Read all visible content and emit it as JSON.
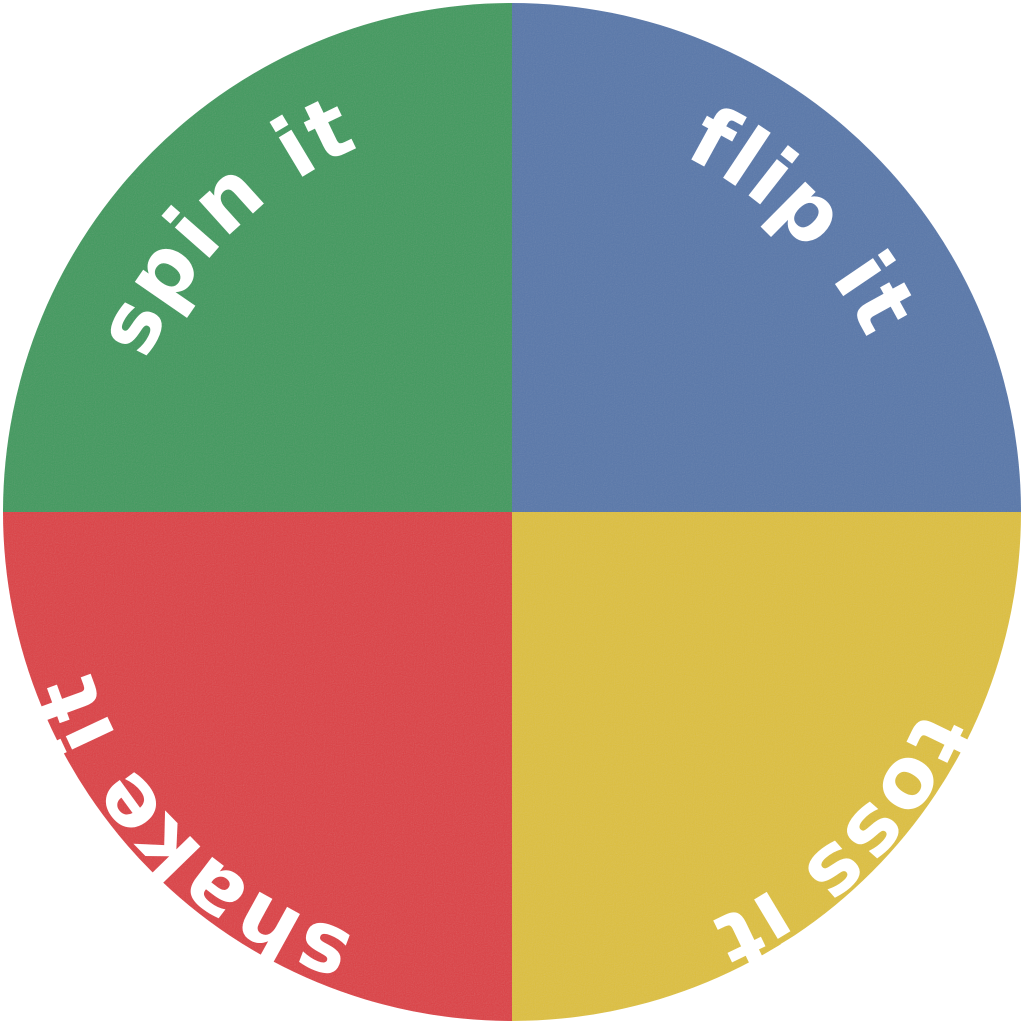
{
  "wheel": {
    "segments": [
      {
        "label": "spin it",
        "color": "#3f9a5e"
      },
      {
        "label": "flip it",
        "color": "#5878aa"
      },
      {
        "label": "toss it",
        "color": "#ddc03e"
      },
      {
        "label": "shake it",
        "color": "#db3f44"
      }
    ]
  }
}
